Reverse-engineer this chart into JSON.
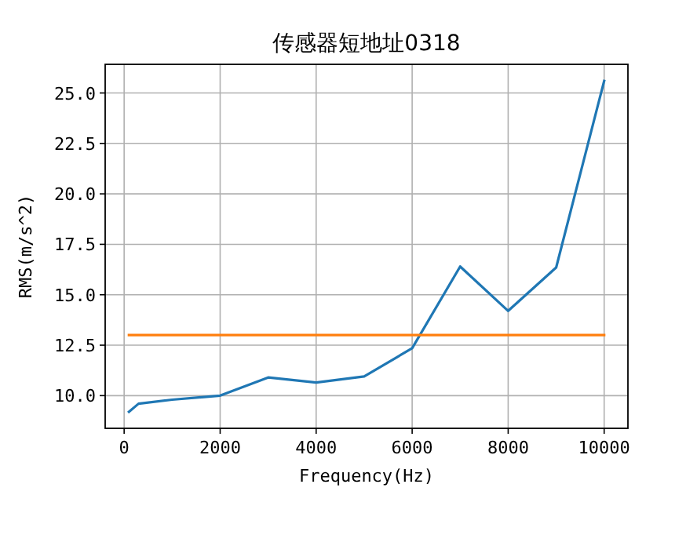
{
  "chart_data": {
    "type": "line",
    "title": "传感器短地址0318",
    "xlabel": "Frequency(Hz)",
    "ylabel": "RMS(m/s^2)",
    "xlim": [
      -395,
      10495
    ],
    "ylim": [
      8.38,
      26.42
    ],
    "xticks": [
      0,
      2000,
      4000,
      6000,
      8000,
      10000
    ],
    "yticks": [
      {
        "value": 10,
        "label": "10.0"
      },
      {
        "value": 12.5,
        "label": "12.5"
      },
      {
        "value": 15,
        "label": "15.0"
      },
      {
        "value": 17.5,
        "label": "17.5"
      },
      {
        "value": 20,
        "label": "20.0"
      },
      {
        "value": 22.5,
        "label": "22.5"
      },
      {
        "value": 25,
        "label": "25.0"
      }
    ],
    "grid": true,
    "marker": "none",
    "line_style": "solid",
    "series": [
      {
        "color": "#1f77b4",
        "x": [
          100,
          300,
          1000,
          2000,
          3000,
          4000,
          5000,
          6000,
          7000,
          8000,
          9000,
          10000
        ],
        "values": [
          9.2,
          9.6,
          9.8,
          10.0,
          10.9,
          10.65,
          10.95,
          12.35,
          16.4,
          14.2,
          16.35,
          25.6
        ]
      },
      {
        "color": "#ff7f0e",
        "x": [
          100,
          10000
        ],
        "values": [
          13.0,
          13.0
        ]
      }
    ]
  }
}
